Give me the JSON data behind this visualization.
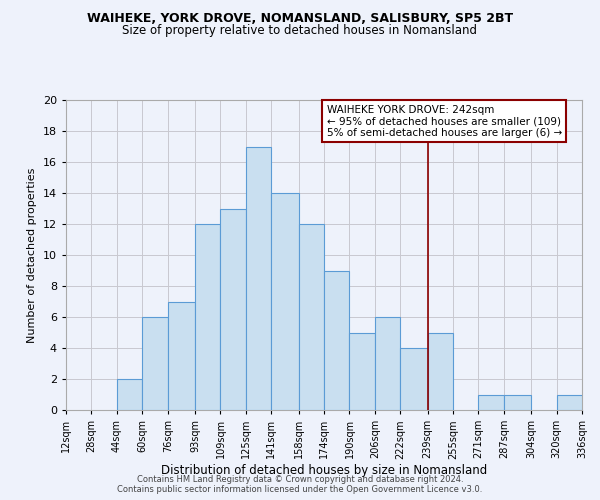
{
  "title1": "WAIHEKE, YORK DROVE, NOMANSLAND, SALISBURY, SP5 2BT",
  "title2": "Size of property relative to detached houses in Nomansland",
  "xlabel": "Distribution of detached houses by size in Nomansland",
  "ylabel": "Number of detached properties",
  "bin_edges": [
    12,
    28,
    44,
    60,
    76,
    93,
    109,
    125,
    141,
    158,
    174,
    190,
    206,
    222,
    239,
    255,
    271,
    287,
    304,
    320,
    336
  ],
  "bar_heights": [
    0,
    0,
    2,
    6,
    7,
    12,
    13,
    17,
    14,
    12,
    9,
    5,
    6,
    4,
    5,
    0,
    1,
    1,
    0,
    1
  ],
  "bar_color": "#c9dff0",
  "bar_edge_color": "#5b9bd5",
  "grid_color": "#c8c8d0",
  "vline_x": 239,
  "vline_color": "#8b0000",
  "ylim": [
    0,
    20
  ],
  "yticks": [
    0,
    2,
    4,
    6,
    8,
    10,
    12,
    14,
    16,
    18,
    20
  ],
  "xtick_labels": [
    "12sqm",
    "28sqm",
    "44sqm",
    "60sqm",
    "76sqm",
    "93sqm",
    "109sqm",
    "125sqm",
    "141sqm",
    "158sqm",
    "174sqm",
    "190sqm",
    "206sqm",
    "222sqm",
    "239sqm",
    "255sqm",
    "271sqm",
    "287sqm",
    "304sqm",
    "320sqm",
    "336sqm"
  ],
  "annotation_title": "WAIHEKE YORK DROVE: 242sqm",
  "annotation_line1": "← 95% of detached houses are smaller (109)",
  "annotation_line2": "5% of semi-detached houses are larger (6) →",
  "footer1": "Contains HM Land Registry data © Crown copyright and database right 2024.",
  "footer2": "Contains public sector information licensed under the Open Government Licence v3.0.",
  "background_color": "#eef2fb",
  "plot_bg_color": "#eef2fb",
  "title1_fontsize": 9.0,
  "title2_fontsize": 8.5,
  "xlabel_fontsize": 8.5,
  "ylabel_fontsize": 8.0,
  "xtick_fontsize": 7.0,
  "ytick_fontsize": 8.0,
  "footer_fontsize": 6.0,
  "annot_fontsize": 7.5
}
